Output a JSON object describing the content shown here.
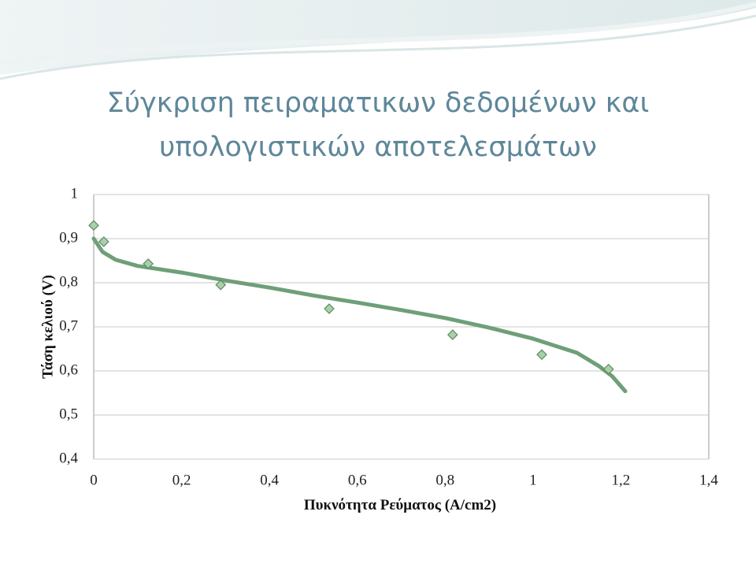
{
  "chart_data": {
    "type": "scatter",
    "title": [
      "Σύγκριση πειραματικων δεδομένων και",
      "υπολογιστικών αποτελεσμάτων"
    ],
    "xlabel": "Πυκνότητα Ρεύματος (A/cm2)",
    "ylabel": "Τάση κελιού (V)",
    "xlim": [
      0,
      1.4
    ],
    "ylim": [
      0.4,
      1
    ],
    "xticks": [
      0,
      {
        "value": 0.2,
        "label": "0,2"
      },
      {
        "value": 0.4,
        "label": "0,4"
      },
      {
        "value": 0.6,
        "label": "0,6"
      },
      {
        "value": 0.8,
        "label": "0,8"
      },
      1,
      {
        "value": 1.2,
        "label": "1,2"
      },
      {
        "value": 1.4,
        "label": "1,4"
      }
    ],
    "yticks": [
      {
        "value": 0.4,
        "label": "0,4"
      },
      {
        "value": 0.5,
        "label": "0,5"
      },
      {
        "value": 0.6,
        "label": "0,6"
      },
      {
        "value": 0.7,
        "label": "0,7"
      },
      {
        "value": 0.8,
        "label": "0,8"
      },
      {
        "value": 0.9,
        "label": "0,9"
      },
      1
    ],
    "grid": true,
    "series": [
      {
        "mode": "lines",
        "color": "#6f9f78",
        "x": [
          0,
          0.02,
          0.05,
          0.1,
          0.2,
          0.3,
          0.4,
          0.5,
          0.6,
          0.7,
          0.8,
          0.9,
          1.0,
          1.1,
          1.15,
          1.18,
          1.21
        ],
        "y": [
          0.9,
          0.87,
          0.852,
          0.838,
          0.823,
          0.805,
          0.789,
          0.771,
          0.755,
          0.738,
          0.72,
          0.698,
          0.673,
          0.641,
          0.611,
          0.588,
          0.554
        ]
      },
      {
        "mode": "markers",
        "color": "#a9d0aa",
        "x": [
          0,
          0.023,
          0.124,
          0.289,
          0.536,
          0.817,
          1.02,
          1.172
        ],
        "y": [
          0.93,
          0.893,
          0.843,
          0.795,
          0.741,
          0.682,
          0.637,
          0.604
        ]
      }
    ]
  }
}
